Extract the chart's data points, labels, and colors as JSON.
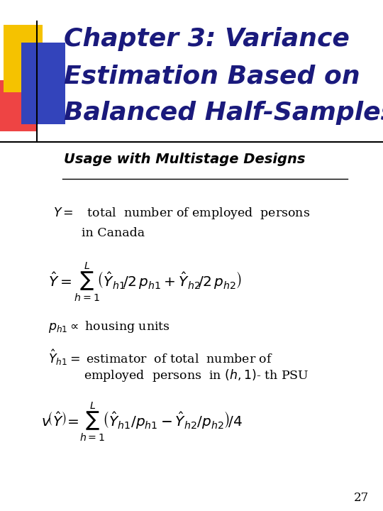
{
  "bg_color": "#ffffff",
  "title_line1": "Chapter 3: Variance",
  "title_line2": "Estimation Based on",
  "title_line3": "Balanced Half-Samples",
  "title_color": "#1a1a7c",
  "title_fontsize": 26,
  "subtitle": "Usage with Multistage Designs",
  "subtitle_color": "#000000",
  "subtitle_fontsize": 14,
  "page_number": "27",
  "content_color": "#000000",
  "content_fontsize": 12.5
}
